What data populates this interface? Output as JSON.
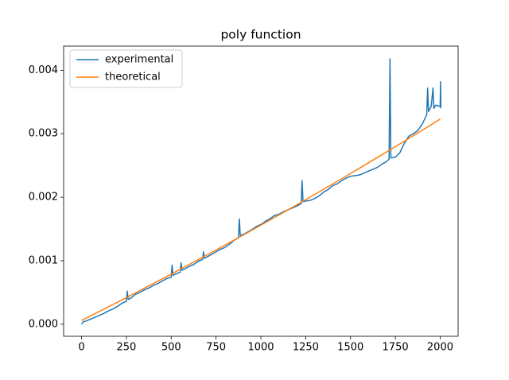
{
  "chart_data": {
    "type": "line",
    "title": "poly function",
    "series": [
      {
        "name": "experimental",
        "color": "#1f77b4",
        "x": [
          0,
          10,
          25,
          50,
          75,
          100,
          125,
          150,
          175,
          200,
          225,
          250,
          255,
          260,
          275,
          300,
          325,
          350,
          375,
          400,
          425,
          450,
          475,
          500,
          505,
          510,
          525,
          550,
          555,
          560,
          575,
          600,
          625,
          650,
          675,
          680,
          685,
          700,
          725,
          750,
          775,
          800,
          825,
          850,
          875,
          880,
          885,
          900,
          925,
          950,
          975,
          1000,
          1025,
          1050,
          1075,
          1100,
          1125,
          1150,
          1175,
          1200,
          1225,
          1230,
          1235,
          1250,
          1275,
          1300,
          1325,
          1350,
          1375,
          1400,
          1425,
          1450,
          1475,
          1500,
          1525,
          1550,
          1575,
          1600,
          1625,
          1650,
          1675,
          1700,
          1715,
          1720,
          1725,
          1750,
          1775,
          1800,
          1825,
          1850,
          1875,
          1900,
          1925,
          1930,
          1935,
          1950,
          1960,
          1965,
          1975,
          2000,
          2002,
          2004
        ],
        "values": [
          0.0,
          4e-05,
          5e-05,
          8e-05,
          0.00011,
          0.00014,
          0.00017,
          0.00021,
          0.00024,
          0.00028,
          0.00033,
          0.00036,
          0.00052,
          0.00039,
          0.00041,
          0.00047,
          0.0005,
          0.00054,
          0.00057,
          0.00061,
          0.00064,
          0.00068,
          0.00072,
          0.00074,
          0.00093,
          0.00077,
          0.00079,
          0.00082,
          0.00097,
          0.00085,
          0.00087,
          0.00091,
          0.00094,
          0.00099,
          0.00102,
          0.00114,
          0.00104,
          0.00106,
          0.0011,
          0.00114,
          0.00118,
          0.00121,
          0.00126,
          0.00132,
          0.00136,
          0.00166,
          0.0014,
          0.00141,
          0.00145,
          0.00149,
          0.00154,
          0.00157,
          0.00162,
          0.00166,
          0.00171,
          0.00173,
          0.00177,
          0.0018,
          0.00183,
          0.00186,
          0.0019,
          0.00226,
          0.00193,
          0.00194,
          0.00195,
          0.00198,
          0.00202,
          0.00208,
          0.00212,
          0.00218,
          0.00221,
          0.00226,
          0.0023,
          0.00233,
          0.00234,
          0.00235,
          0.00238,
          0.00241,
          0.00244,
          0.00247,
          0.00252,
          0.00256,
          0.0026,
          0.00418,
          0.00262,
          0.00263,
          0.0027,
          0.00285,
          0.00296,
          0.003,
          0.00305,
          0.00315,
          0.0033,
          0.00372,
          0.00335,
          0.00343,
          0.00372,
          0.0034,
          0.00345,
          0.00343,
          0.00382,
          0.0034
        ]
      },
      {
        "name": "theoretical",
        "color": "#ff7f0e",
        "x": [
          0,
          100,
          200,
          300,
          400,
          500,
          600,
          700,
          800,
          900,
          1000,
          1100,
          1200,
          1300,
          1400,
          1500,
          1600,
          1700,
          1800,
          1900,
          2000
        ],
        "values": [
          6e-05,
          0.000202,
          0.000346,
          0.000492,
          0.00064,
          0.000789,
          0.00094,
          0.001092,
          0.001246,
          0.001402,
          0.00156,
          0.001719,
          0.00188,
          0.002043,
          0.002208,
          0.002374,
          0.002542,
          0.002711,
          0.002882,
          0.003055,
          0.00323
        ]
      }
    ],
    "xlim": [
      -100,
      2100
    ],
    "ylim": [
      -0.00019,
      0.00438
    ],
    "xticks": [
      0,
      250,
      500,
      750,
      1000,
      1250,
      1500,
      1750,
      2000
    ],
    "yticks": [
      {
        "value": 0,
        "label": "0.000"
      },
      {
        "value": 0.001,
        "label": "0.001"
      },
      {
        "value": 0.002,
        "label": "0.002"
      },
      {
        "value": 0.003,
        "label": "0.003"
      },
      {
        "value": 0.004,
        "label": "0.004"
      }
    ],
    "legend": "upper left"
  }
}
